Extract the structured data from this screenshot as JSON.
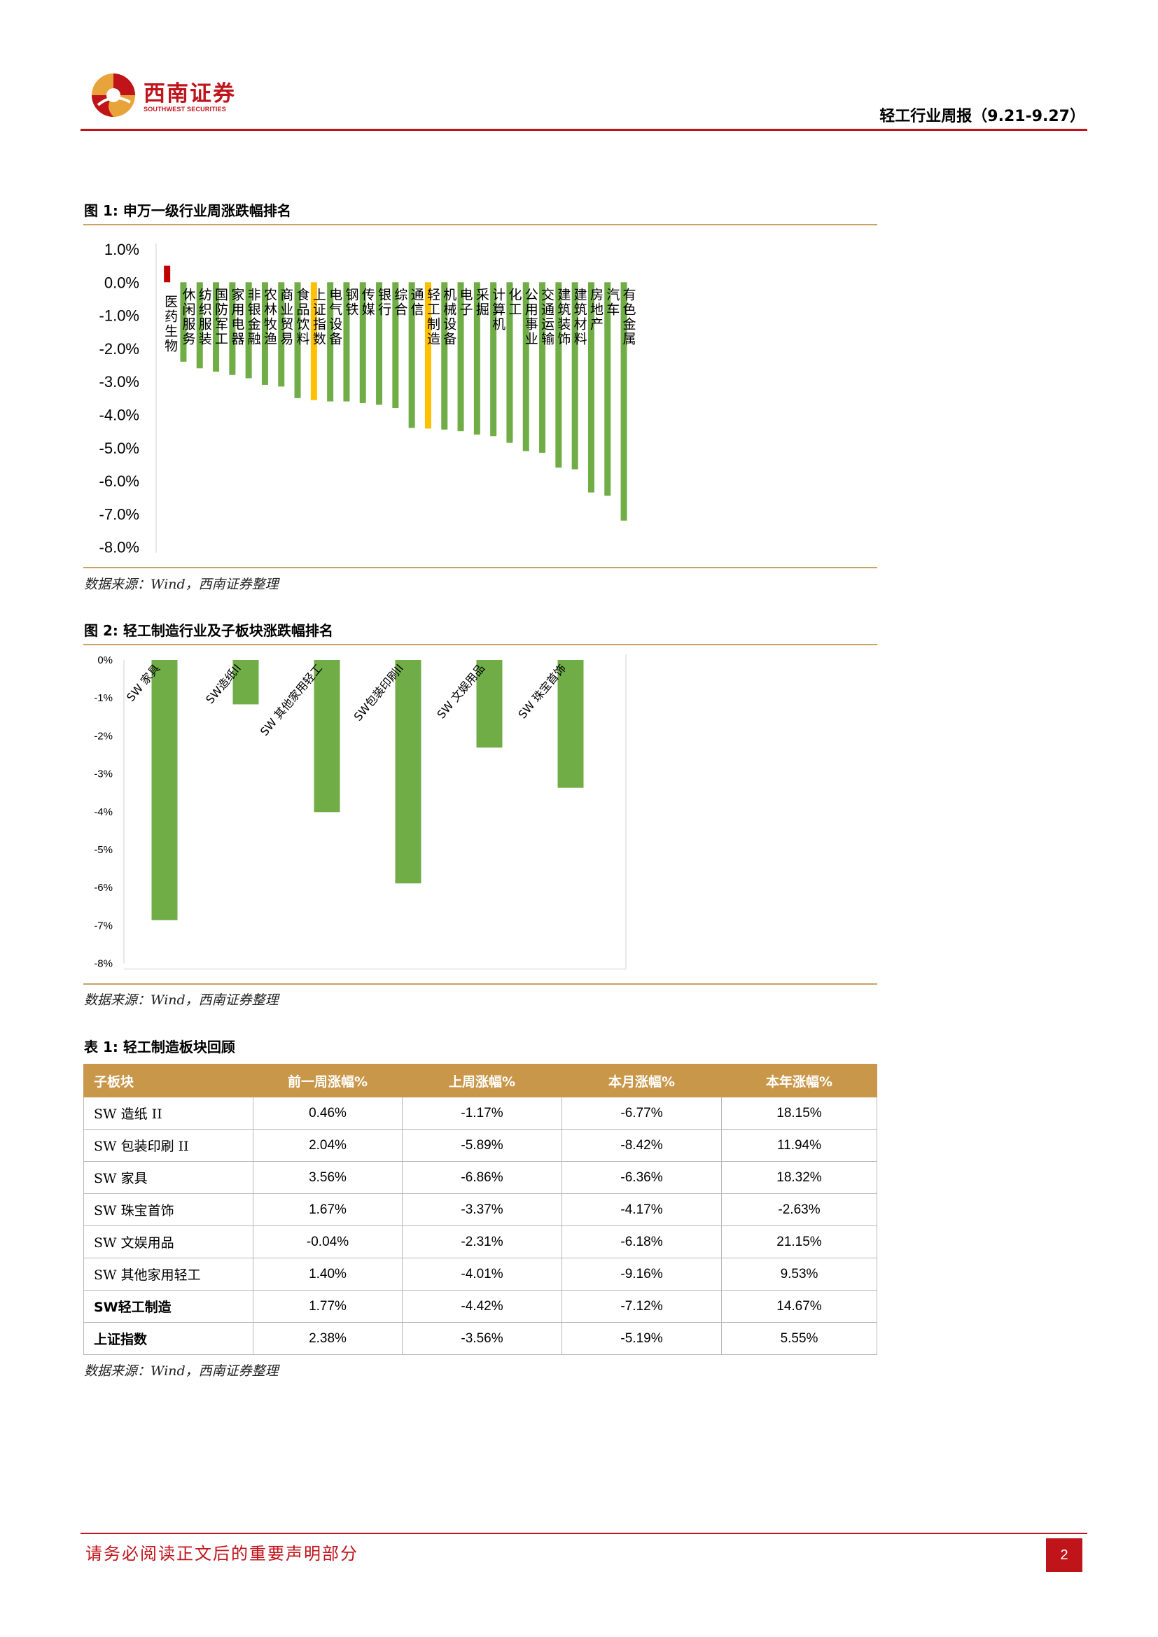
{
  "header": {
    "logo_cn": "西南证券",
    "logo_en": "SOUTHWEST SECURITIES",
    "report_title": "轻工行业周报（9.21-9.27）"
  },
  "figure1": {
    "caption": "图 1:  申万一级行业周涨跌幅排名",
    "source": "数据来源：Wind，西南证券整理"
  },
  "figure2": {
    "caption": "图 2:  轻工制造行业及子板块涨跌幅排名",
    "source": "数据来源：Wind，西南证券整理"
  },
  "table1": {
    "caption": "表 1:  轻工制造板块回顾",
    "headers": [
      "子板块",
      "前一周涨幅%",
      "上周涨幅%",
      "本月涨幅%",
      "本年涨幅%"
    ],
    "rows": [
      [
        "SW 造纸 II",
        "0.46%",
        "-1.17%",
        "-6.77%",
        "18.15%"
      ],
      [
        "SW 包装印刷 II",
        "2.04%",
        "-5.89%",
        "-8.42%",
        "11.94%"
      ],
      [
        "SW 家具",
        "3.56%",
        "-6.86%",
        "-6.36%",
        "18.32%"
      ],
      [
        "SW 珠宝首饰",
        "1.67%",
        "-3.37%",
        "-4.17%",
        "-2.63%"
      ],
      [
        "SW 文娱用品",
        "-0.04%",
        "-2.31%",
        "-6.18%",
        "21.15%"
      ],
      [
        "SW 其他家用轻工",
        "1.40%",
        "-4.01%",
        "-9.16%",
        "9.53%"
      ],
      [
        "SW轻工制造",
        "1.77%",
        "-4.42%",
        "-7.12%",
        "14.67%"
      ],
      [
        "上证指数",
        "2.38%",
        "-3.56%",
        "-5.19%",
        "5.55%"
      ]
    ],
    "source": "数据来源：Wind，西南证券整理"
  },
  "footer": {
    "disclaimer": "请务必阅读正文后的重要声明部分",
    "page_number": "2"
  },
  "colors": {
    "brand_red": "#c0141b",
    "bar_green": "#70ad47",
    "bar_highlight": "#ffc000",
    "bar_positive": "#c00000",
    "table_header": "#c8974a"
  },
  "chart_data": [
    {
      "type": "bar",
      "categories": [
        "医药生物",
        "休闲服务",
        "纺织服装",
        "国防军工",
        "家用电器",
        "非银金融",
        "农林牧渔",
        "商业贸易",
        "食品饮料",
        "上证指数",
        "电气设备",
        "钢铁",
        "传媒",
        "银行",
        "综合",
        "通信",
        "轻工制造",
        "机械设备",
        "电子",
        "采掘",
        "计算机",
        "化工",
        "公用事业",
        "交通运输",
        "建筑装饰",
        "建筑材料",
        "房地产",
        "汽车",
        "有色金属"
      ],
      "values": [
        0.5,
        -2.4,
        -2.6,
        -2.7,
        -2.8,
        -2.9,
        -3.1,
        -3.15,
        -3.5,
        -3.56,
        -3.6,
        -3.6,
        -3.65,
        -3.7,
        -3.8,
        -4.4,
        -4.42,
        -4.45,
        -4.5,
        -4.6,
        -4.65,
        -4.85,
        -5.1,
        -5.15,
        -5.6,
        -5.65,
        -6.35,
        -6.45,
        -7.2
      ],
      "highlight": [
        "上证指数",
        "轻工制造"
      ],
      "ylim": [
        -8,
        1
      ],
      "yticks": [
        "1.0%",
        "0.0%",
        "-1.0%",
        "-2.0%",
        "-3.0%",
        "-4.0%",
        "-5.0%",
        "-6.0%",
        "-7.0%",
        "-8.0%"
      ]
    },
    {
      "type": "bar",
      "categories": [
        "SW 家具",
        "SW造纸II",
        "SW 其他家用轻工",
        "SW包装印刷II",
        "SW 文娱用品",
        "SW 珠宝首饰"
      ],
      "values": [
        -6.86,
        -1.17,
        -4.01,
        -5.89,
        -2.31,
        -3.37
      ],
      "ylim": [
        -8,
        0
      ],
      "yticks": [
        "0%",
        "-1%",
        "-2%",
        "-3%",
        "-4%",
        "-5%",
        "-6%",
        "-7%",
        "-8%"
      ]
    }
  ]
}
